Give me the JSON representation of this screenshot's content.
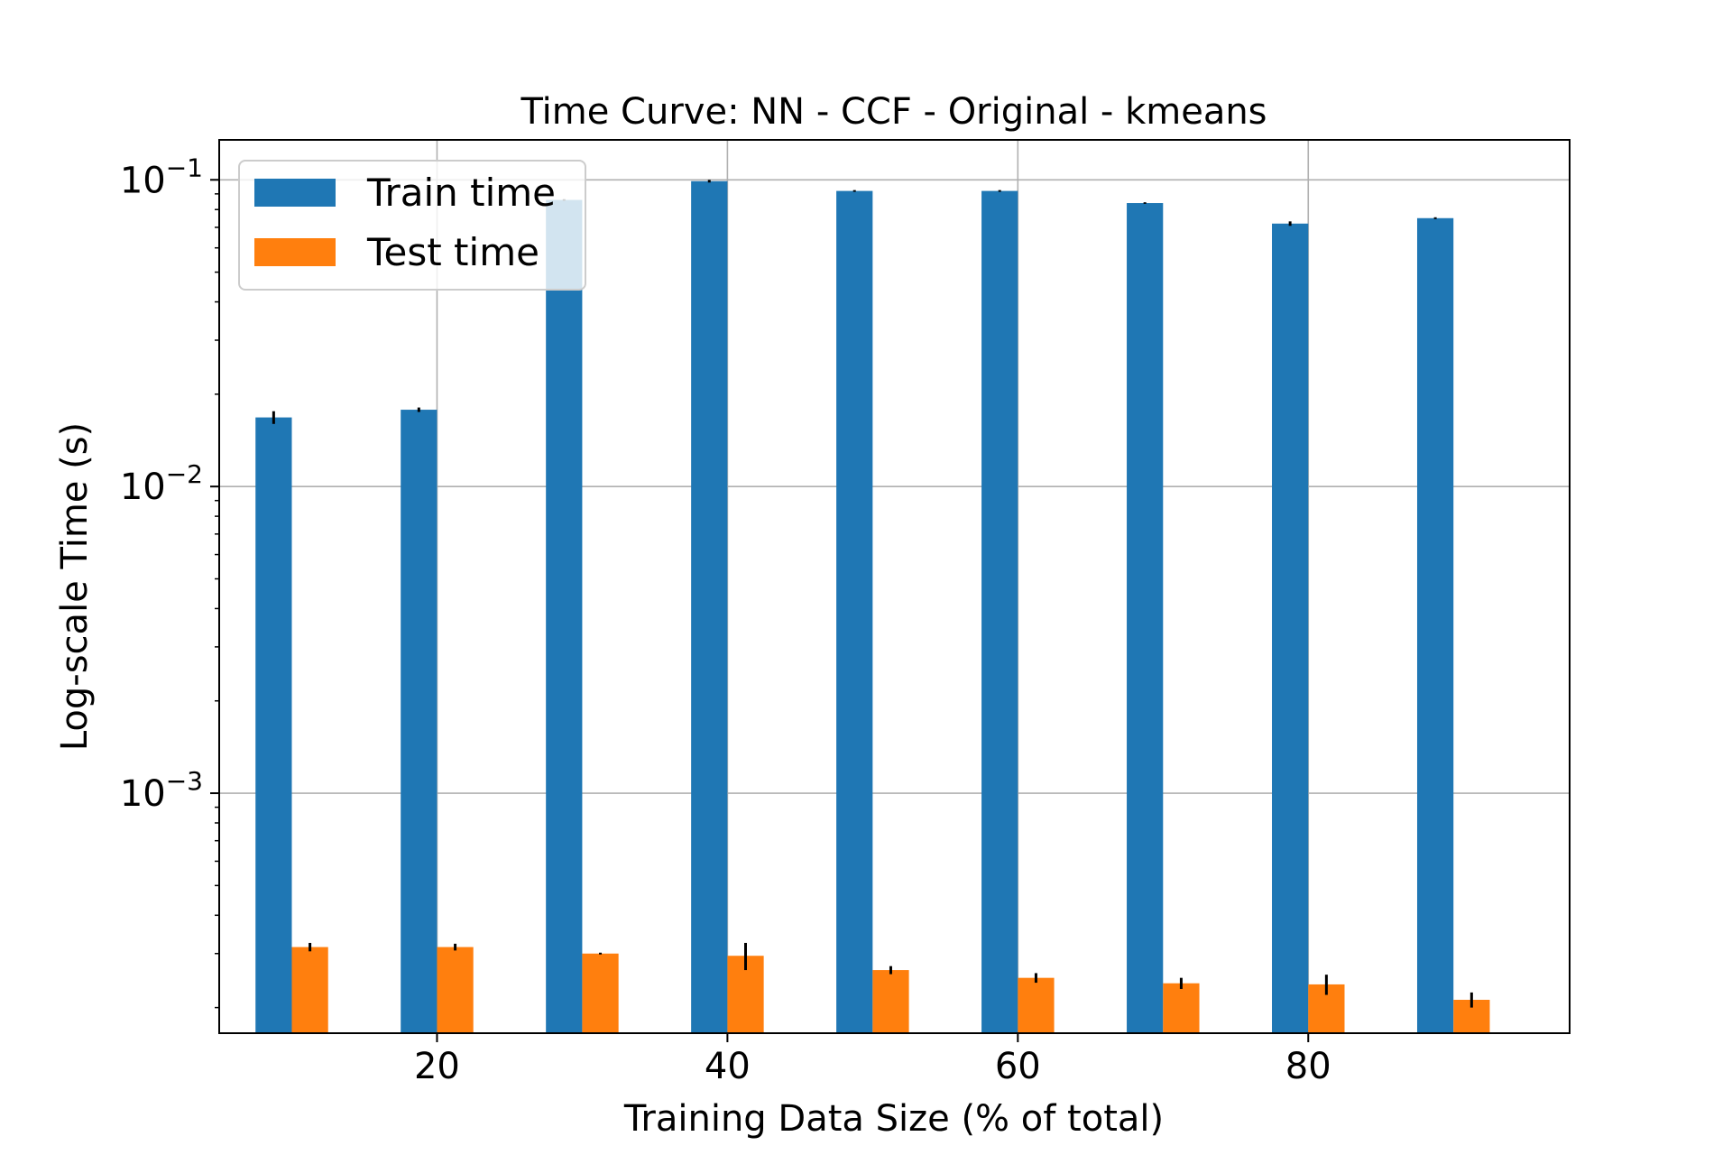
{
  "chart_data": {
    "type": "bar",
    "title": "Time Curve: NN - CCF - Original - kmeans",
    "xlabel": "Training Data Size (% of total)",
    "ylabel": "Log-scale Time (s)",
    "yscale": "log",
    "xlim": [
      5,
      98
    ],
    "ylim": [
      0.000165,
      0.135
    ],
    "xticks": [
      20,
      40,
      60,
      80
    ],
    "xtick_labels": [
      "20",
      "40",
      "60",
      "80"
    ],
    "yticks": [
      0.001,
      0.01,
      0.1
    ],
    "ytick_labels": [
      {
        "base": "10",
        "exp": "−3"
      },
      {
        "base": "10",
        "exp": "−2"
      },
      {
        "base": "10",
        "exp": "−1"
      }
    ],
    "grid": true,
    "legend_position": "upper-left",
    "x": [
      10,
      20,
      30,
      40,
      50,
      60,
      70,
      80,
      90
    ],
    "series": [
      {
        "name": "Train time",
        "color": "#1f77b4",
        "values": [
          0.0168,
          0.0178,
          0.086,
          0.099,
          0.092,
          0.092,
          0.084,
          0.072,
          0.075
        ],
        "errors": [
          0.0008,
          0.0003,
          0.0005,
          0.001,
          0.0006,
          0.0006,
          0.0005,
          0.0012,
          0.0005
        ]
      },
      {
        "name": "Test time",
        "color": "#ff7f0e",
        "values": [
          0.000315,
          0.000315,
          0.0003,
          0.000295,
          0.000265,
          0.00025,
          0.00024,
          0.000238,
          0.000212
        ],
        "errors": [
          1e-05,
          8e-06,
          2e-06,
          3e-05,
          8e-06,
          9e-06,
          1e-05,
          1.8e-05,
          1.2e-05
        ]
      }
    ]
  }
}
